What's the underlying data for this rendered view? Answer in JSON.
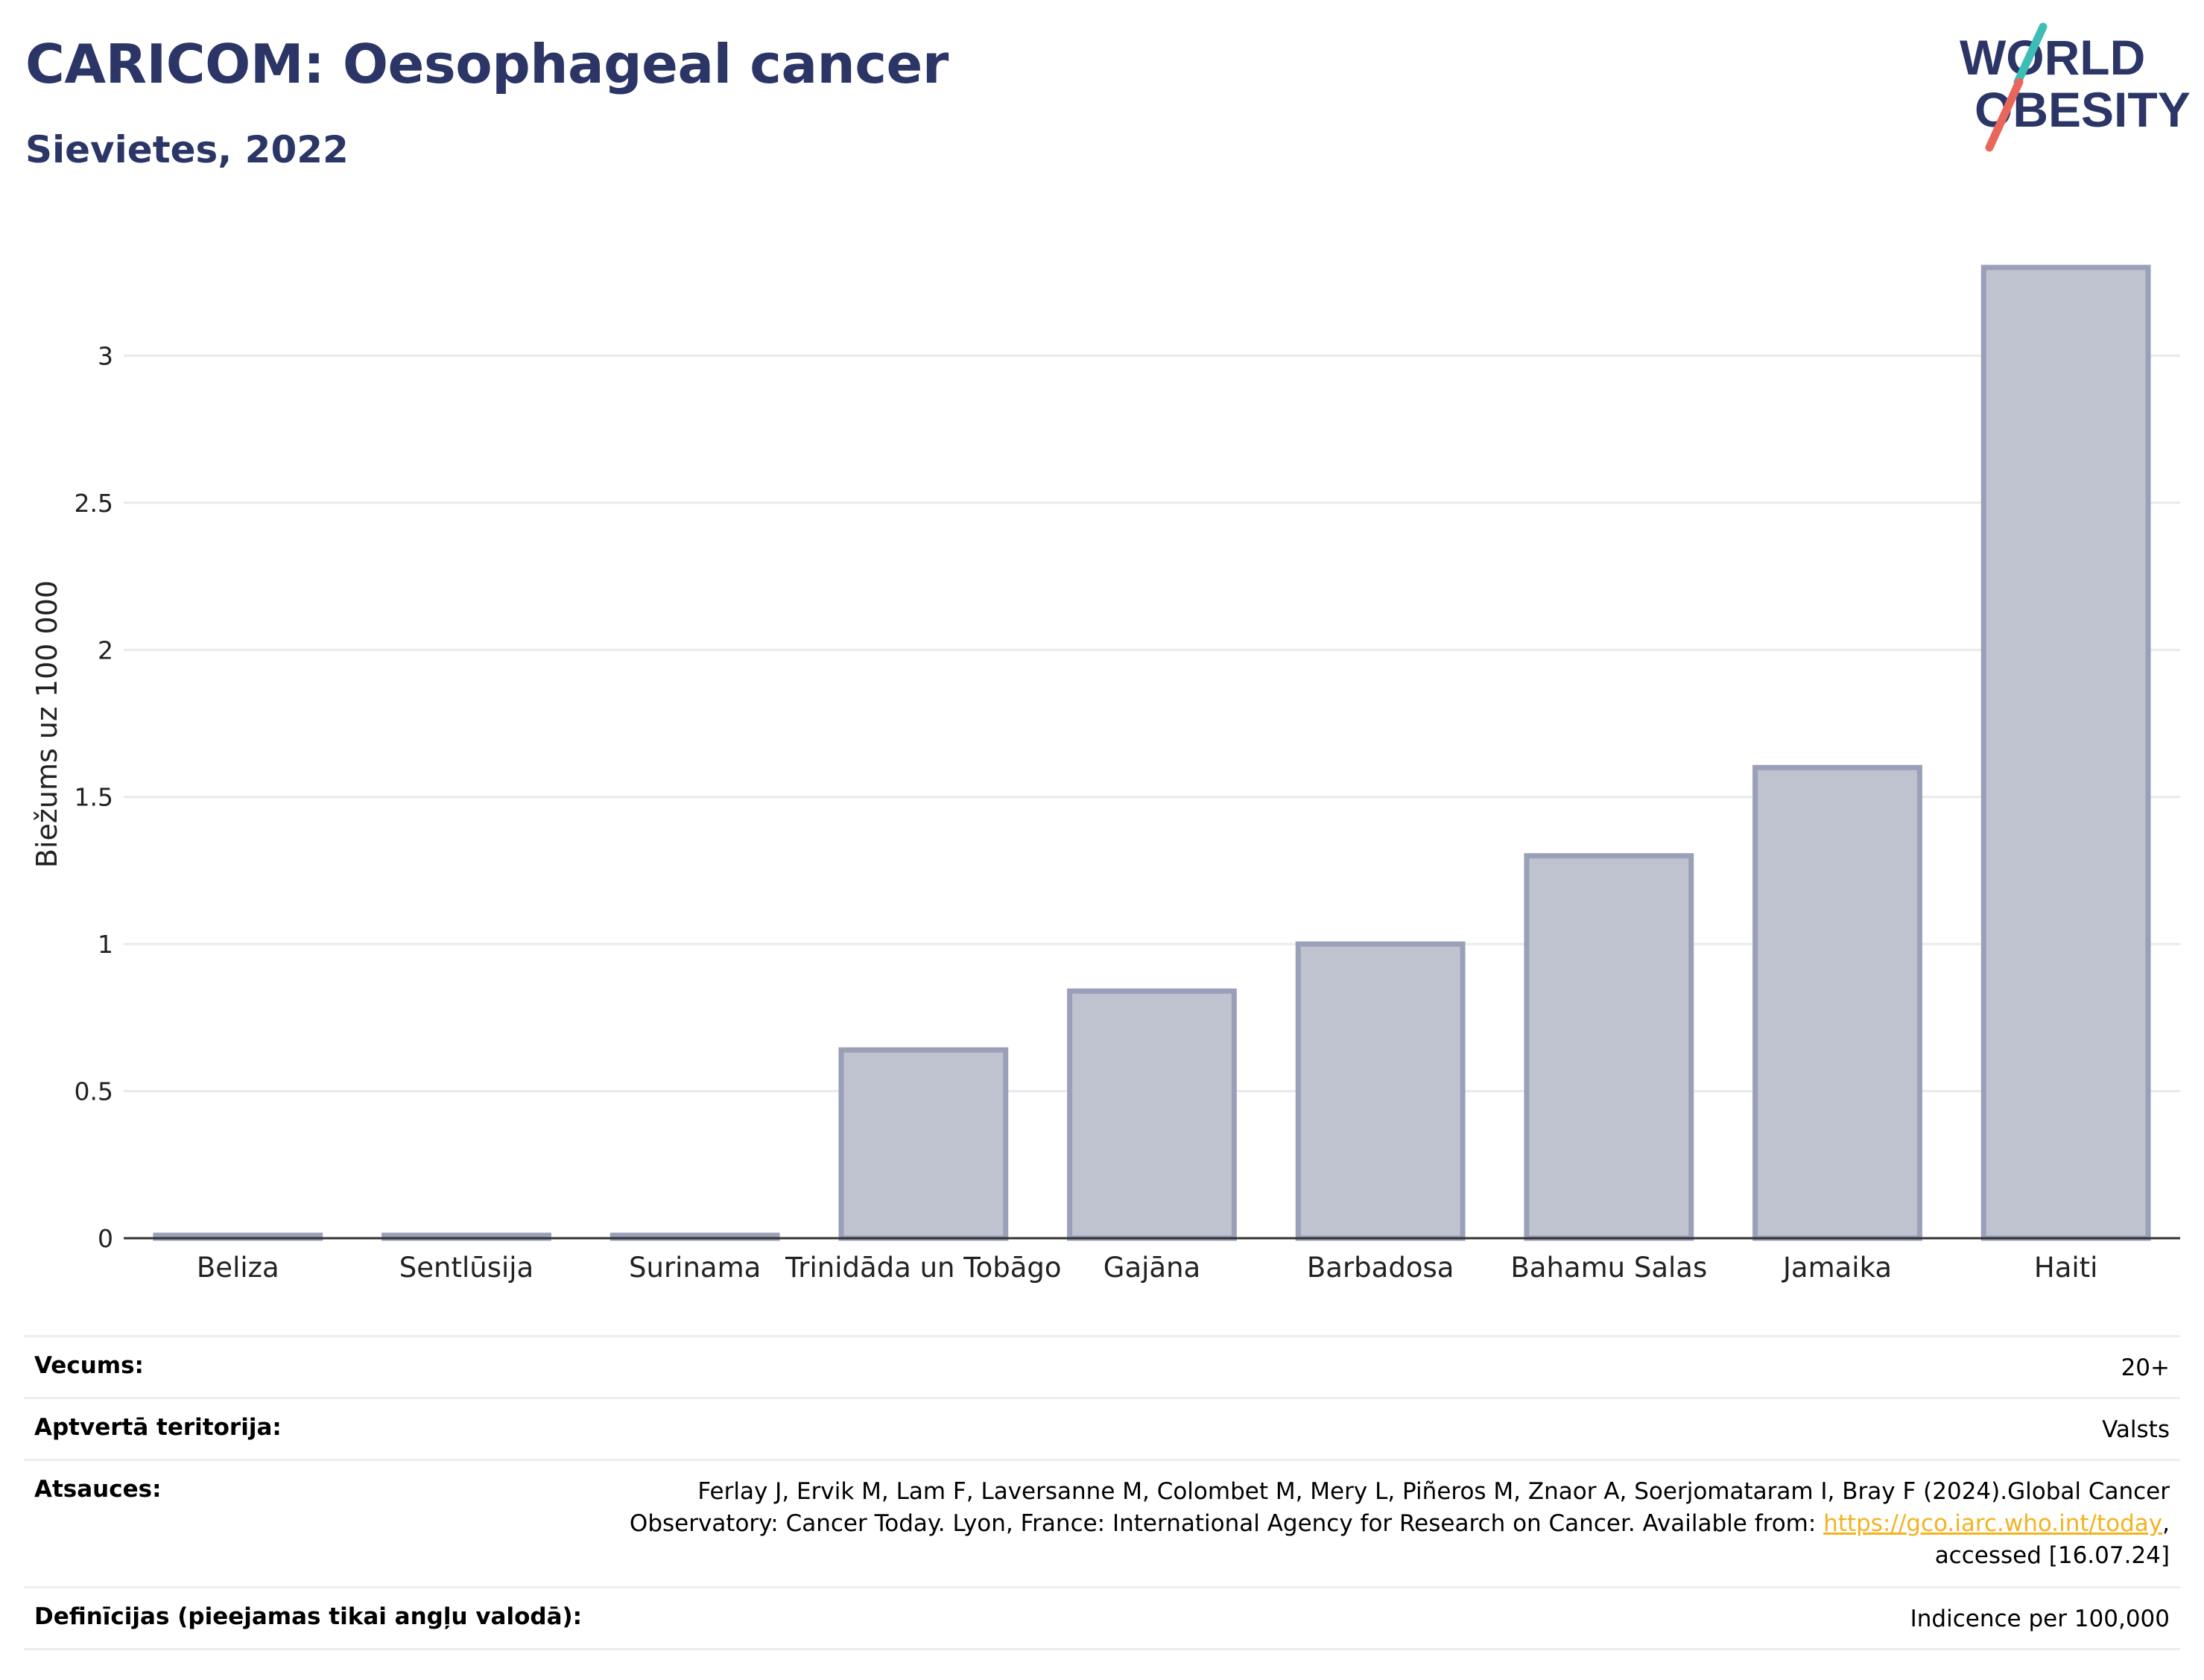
{
  "header": {
    "title": "CARICOM: Oesophageal cancer",
    "subtitle": "Sievietes, 2022"
  },
  "logo": {
    "line1": "WORLD",
    "line2": "OBESITY",
    "accent_teal": "#3dbdb5",
    "accent_red": "#e8665a",
    "text_color": "#2b3566"
  },
  "chart_data": {
    "type": "bar",
    "categories": [
      "Beliza",
      "Sentlūsija",
      "Surinama",
      "Trinidāda un Tobāgo",
      "Gajāna",
      "Barbadosa",
      "Bahamu Salas",
      "Jamaika",
      "Haiti"
    ],
    "values": [
      0.01,
      0.01,
      0.01,
      0.64,
      0.84,
      1.0,
      1.3,
      1.6,
      3.3
    ],
    "ylabel": "Biežums uz 100 000",
    "ylim": [
      0,
      3.5
    ],
    "yticks": [
      0,
      0.5,
      1,
      1.5,
      2,
      2.5,
      3
    ],
    "ytick_labels": [
      "0",
      "0.5",
      "1",
      "1.5",
      "2",
      "2.5",
      "3"
    ],
    "grid": true,
    "bar_fill": "#bfc2cf",
    "bar_stroke": "#9aa0b8"
  },
  "info": {
    "age_label": "Vecums:",
    "age_value": "20+",
    "coverage_label": "Aptvertā teritorija:",
    "coverage_value": "Valsts",
    "refs_label": "Atsauces:",
    "refs_line1": "Ferlay J, Ervik M, Lam F, Laversanne M, Colombet M, Mery L, Piñeros M, Znaor A, Soerjomataram I, Bray F (2024).Global Cancer",
    "refs_line2_pre": "Observatory: Cancer Today. Lyon, France: International Agency for Research on Cancer. Available from: ",
    "refs_link": "https://gco.iarc.who.int/today",
    "refs_line2_post": ",",
    "refs_line3": "accessed [16.07.24]",
    "defs_label": "Definīcijas (pieejamas tikai angļu valodā):",
    "defs_value": "Indicence per 100,000"
  }
}
